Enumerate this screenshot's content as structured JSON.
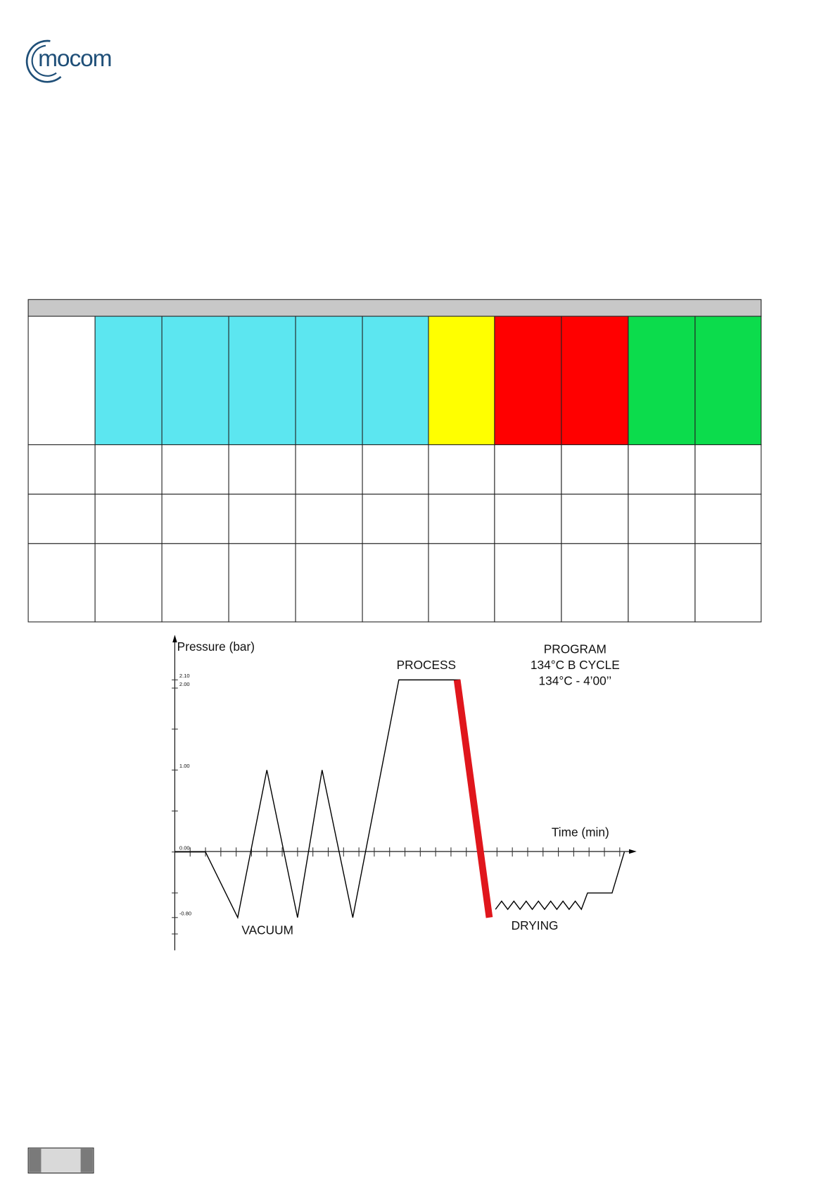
{
  "header": {
    "logo": "mocom"
  },
  "chart_data": {
    "type": "line",
    "y_label": "Pressure (bar)",
    "x_label": "Time (min)",
    "annotations": [
      "PROCESS",
      "VACUUM",
      "DRYING"
    ],
    "program": [
      "PROGRAM",
      "134°C B CYCLE",
      "134°C - 4’00’’"
    ],
    "xlim": [
      0,
      30
    ],
    "ylim": [
      -1.2,
      2.65
    ],
    "yticks": [
      {
        "value": 2.1,
        "label": "2.10"
      },
      {
        "value": 2,
        "label": "2.00"
      },
      {
        "value": 1,
        "label": "1.00"
      },
      {
        "value": 0,
        "label": "0.00"
      },
      {
        "value": -0.8,
        "label": "-0.80"
      }
    ],
    "yminor": [
      1.5,
      0.5,
      -0.5,
      -1
    ],
    "xminor": [
      1,
      2,
      3,
      4,
      5,
      6,
      7,
      8,
      9,
      10,
      11,
      12,
      13,
      14,
      15,
      16,
      17,
      18,
      19,
      20,
      21,
      22,
      23,
      24,
      25,
      26,
      27,
      28,
      29
    ],
    "series": [
      {
        "color": "#000000",
        "x": [
          0,
          2,
          4.1,
          6,
          8,
          9.6,
          11.6,
          14.6,
          18.6
        ],
        "values": [
          0,
          0,
          -0.8,
          1,
          -0.8,
          1,
          -0.8,
          2.1,
          2.1
        ]
      },
      {
        "color": "#e0161c",
        "x": [
          18.4,
          20.5
        ],
        "values": [
          2.1,
          -0.8
        ]
      },
      {
        "color": "#000000",
        "x": [
          20.9,
          21.3,
          21.7,
          22.1,
          22.5,
          22.9,
          23.3,
          23.7,
          24.1,
          24.5,
          24.9,
          25.3,
          25.7,
          26.1,
          26.5,
          26.9,
          28.5,
          29.3
        ],
        "values": [
          -0.7,
          -0.6,
          -0.7,
          -0.6,
          -0.7,
          -0.6,
          -0.7,
          -0.6,
          -0.7,
          -0.6,
          -0.7,
          -0.6,
          -0.7,
          -0.6,
          -0.7,
          -0.5,
          -0.5,
          0
        ]
      }
    ]
  }
}
